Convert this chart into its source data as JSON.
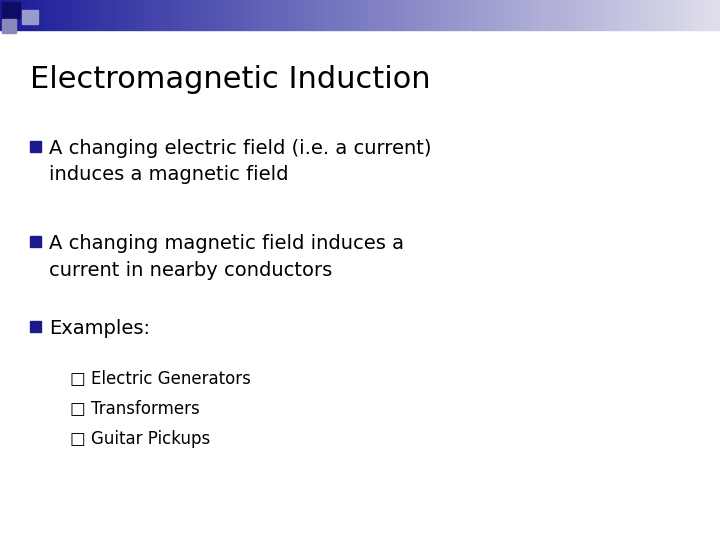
{
  "title": "Electromagnetic Induction",
  "background_color": "#ffffff",
  "title_color": "#000000",
  "title_fontsize": 22,
  "bullet_color": "#1a1a8c",
  "bullet_text_color": "#000000",
  "bullet_fontsize": 14,
  "sub_bullet_fontsize": 12,
  "bullets": [
    "A changing electric field (i.e. a current)\ninduces a magnetic field",
    "A changing magnetic field induces a\ncurrent in nearby conductors",
    "Examples:"
  ],
  "sub_bullets": [
    "□ Electric Generators",
    "□ Transformers",
    "□ Guitar Pickups"
  ],
  "header_bar_color_left": "#1a1a99",
  "header_bar_color_right": "#e8e8f0"
}
